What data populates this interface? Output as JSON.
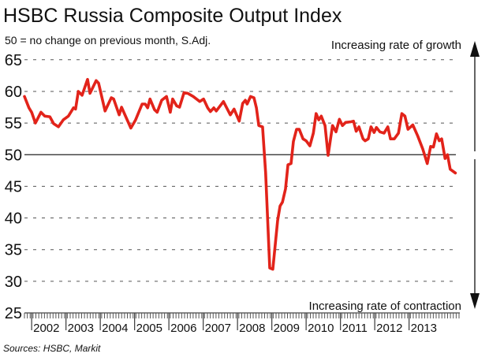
{
  "chart_data": {
    "type": "line",
    "title": "HSBC Russia Composite Output Index",
    "subtitle": "50 = no change on previous month, S.Adj.",
    "annotation_top": "Increasing rate of growth",
    "annotation_bottom": "Increasing rate of contraction",
    "source": "Sources: HSBC, Markit",
    "xlabel": "",
    "ylabel": "",
    "ylim": [
      25,
      65
    ],
    "xlim": [
      2001.79,
      2014.4
    ],
    "yticks": [
      "25",
      "30",
      "35",
      "40",
      "45",
      "50",
      "55",
      "60",
      "65"
    ],
    "xtick_labels": [
      "2002",
      "2003",
      "2004",
      "2005",
      "2006",
      "2007",
      "2008",
      "2009",
      "2010",
      "2011",
      "2012",
      "2013"
    ],
    "reference_line": 50,
    "grid": true,
    "series": [
      {
        "name": "Composite Output Index",
        "color": "#e2231a",
        "x": [
          2001.79,
          2001.92,
          2002.0,
          2002.11,
          2002.27,
          2002.38,
          2002.53,
          2002.64,
          2002.78,
          2002.92,
          2003.07,
          2003.22,
          2003.28,
          2003.36,
          2003.47,
          2003.63,
          2003.7,
          2003.88,
          2003.95,
          2004.14,
          2004.32,
          2004.39,
          2004.55,
          2004.62,
          2004.89,
          2005.03,
          2005.22,
          2005.31,
          2005.38,
          2005.45,
          2005.58,
          2005.66,
          2005.79,
          2005.93,
          2006.04,
          2006.11,
          2006.23,
          2006.31,
          2006.44,
          2006.55,
          2006.71,
          2006.9,
          2007.01,
          2007.13,
          2007.21,
          2007.31,
          2007.38,
          2007.59,
          2007.79,
          2007.9,
          2008.05,
          2008.15,
          2008.23,
          2008.28,
          2008.38,
          2008.48,
          2008.55,
          2008.62,
          2008.73,
          2008.82,
          2008.94,
          2009.03,
          2009.17,
          2009.24,
          2009.31,
          2009.4,
          2009.47,
          2009.56,
          2009.63,
          2009.72,
          2009.8,
          2009.91,
          2010.0,
          2010.11,
          2010.21,
          2010.29,
          2010.37,
          2010.44,
          2010.55,
          2010.64,
          2010.77,
          2010.87,
          2010.97,
          2011.06,
          2011.15,
          2011.31,
          2011.38,
          2011.46,
          2011.54,
          2011.66,
          2011.72,
          2011.81,
          2011.89,
          2011.98,
          2012.05,
          2012.15,
          2012.27,
          2012.38,
          2012.46,
          2012.57,
          2012.69,
          2012.79,
          2012.88,
          2012.97,
          2013.11,
          2013.25,
          2013.4,
          2013.53,
          2013.63,
          2013.71,
          2013.8,
          2013.88,
          2013.95,
          2014.05,
          2014.12,
          2014.2,
          2014.35
        ],
        "values": [
          59.2,
          57.4,
          56.7,
          55.0,
          56.7,
          56.1,
          56.0,
          54.9,
          54.4,
          55.5,
          56.1,
          57.4,
          57.2,
          60.0,
          59.4,
          61.9,
          59.7,
          61.7,
          61.3,
          56.9,
          59.0,
          58.8,
          56.3,
          57.5,
          54.2,
          55.5,
          58.0,
          58.0,
          57.4,
          58.8,
          57.1,
          56.7,
          58.6,
          59.2,
          56.7,
          58.8,
          57.7,
          57.5,
          59.8,
          59.7,
          59.2,
          58.4,
          58.8,
          57.4,
          56.8,
          57.4,
          56.9,
          58.4,
          56.3,
          57.2,
          55.3,
          58.1,
          58.6,
          58.0,
          59.2,
          59.0,
          57.4,
          54.6,
          54.4,
          47.1,
          32.1,
          31.9,
          39.6,
          41.9,
          42.5,
          44.6,
          48.4,
          48.6,
          52.1,
          54.0,
          54.0,
          52.5,
          52.2,
          51.4,
          53.4,
          56.5,
          55.5,
          56.1,
          54.6,
          49.9,
          54.6,
          53.6,
          55.6,
          54.6,
          55.1,
          55.2,
          55.3,
          53.7,
          54.4,
          52.5,
          52.2,
          52.5,
          54.4,
          53.5,
          54.3,
          53.6,
          53.4,
          54.4,
          52.5,
          52.5,
          53.4,
          56.5,
          56.1,
          54.0,
          54.7,
          53.0,
          50.9,
          48.6,
          51.3,
          51.2,
          53.3,
          52.2,
          52.5,
          49.4,
          50.0,
          47.7,
          47.1
        ]
      }
    ]
  }
}
